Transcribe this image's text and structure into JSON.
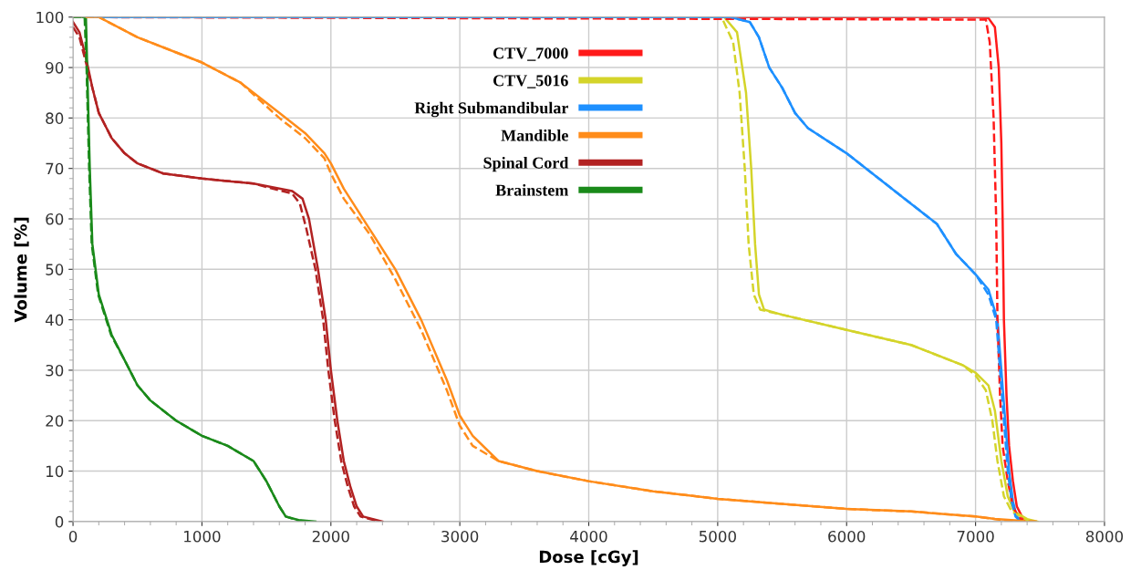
{
  "chart_data": {
    "type": "line",
    "xlabel": "Dose [cGy]",
    "ylabel": "Volume [%]",
    "xlim": [
      0,
      8000
    ],
    "ylim": [
      0,
      100
    ],
    "xticks": [
      0,
      1000,
      2000,
      3000,
      4000,
      5000,
      6000,
      7000,
      8000
    ],
    "yticks": [
      0,
      10,
      20,
      30,
      40,
      50,
      60,
      70,
      80,
      90,
      100
    ],
    "grid": true,
    "legend": "top",
    "marker": "none",
    "series": [
      {
        "name": "CTV_7000",
        "color": "#ff1a1a",
        "line_style": "solid",
        "x": [
          0,
          7000,
          7100,
          7150,
          7180,
          7200,
          7210,
          7220,
          7240,
          7260,
          7290,
          7320,
          7360,
          7400
        ],
        "values": [
          100,
          100,
          99.8,
          98,
          90,
          75,
          60,
          40,
          25,
          15,
          8,
          3,
          1,
          0
        ]
      },
      {
        "name": "CTV_5016",
        "color": "#d4d42a",
        "line_style": "solid",
        "x": [
          0,
          5050,
          5150,
          5220,
          5260,
          5290,
          5320,
          5360,
          5500,
          6000,
          6500,
          6900,
          7000,
          7100,
          7150,
          7200,
          7250,
          7300,
          7400,
          7480
        ],
        "values": [
          100,
          100,
          97,
          85,
          70,
          55,
          45,
          42,
          41,
          38,
          35,
          31,
          29.5,
          27,
          22,
          12,
          5,
          2,
          0.5,
          0
        ]
      },
      {
        "name": "Right Submandibular",
        "color": "#1e90ff",
        "line_style": "solid",
        "x": [
          0,
          5100,
          5250,
          5320,
          5400,
          5500,
          5600,
          5700,
          6000,
          6200,
          6500,
          6700,
          6850,
          7000,
          7100,
          7170,
          7200,
          7230,
          7260,
          7290,
          7320,
          7360
        ],
        "values": [
          100,
          100,
          99,
          96,
          90,
          86,
          81,
          78,
          73,
          69,
          63,
          59,
          53,
          49,
          46,
          40,
          30,
          20,
          10,
          4,
          1,
          0
        ]
      },
      {
        "name": "Mandible",
        "color": "#ff8c1a",
        "line_style": "solid",
        "x": [
          0,
          200,
          500,
          800,
          1000,
          1300,
          1600,
          1800,
          1950,
          2000,
          2100,
          2300,
          2500,
          2700,
          2900,
          3000,
          3100,
          3300,
          3600,
          4000,
          4500,
          5000,
          5500,
          6000,
          6500,
          7000,
          7150,
          7450
        ],
        "values": [
          100,
          100,
          96,
          93,
          91,
          87,
          81,
          77,
          73,
          71,
          66,
          58,
          50,
          40,
          28,
          21,
          17,
          12,
          10,
          8,
          6,
          4.5,
          3.5,
          2.5,
          2,
          1,
          0.5,
          0
        ]
      },
      {
        "name": "Spinal Cord",
        "color": "#b22222",
        "line_style": "solid",
        "x": [
          0,
          50,
          100,
          150,
          200,
          300,
          400,
          500,
          700,
          1000,
          1400,
          1700,
          1780,
          1830,
          1900,
          1960,
          2000,
          2050,
          2100,
          2150,
          2200,
          2250,
          2400
        ],
        "values": [
          99,
          97,
          92,
          86,
          81,
          76,
          73,
          71,
          69,
          68,
          67,
          65.5,
          64,
          60,
          50,
          40,
          30,
          20,
          12,
          7,
          3,
          1,
          0
        ]
      },
      {
        "name": "Brainstem",
        "color": "#1a8a1a",
        "line_style": "solid",
        "x": [
          0,
          100,
          110,
          130,
          150,
          200,
          300,
          400,
          500,
          600,
          800,
          1000,
          1200,
          1400,
          1500,
          1600,
          1650,
          1750,
          1880
        ],
        "values": [
          100,
          100,
          90,
          70,
          55,
          45,
          37,
          32,
          27,
          24,
          20,
          17,
          15,
          12,
          8,
          3,
          1,
          0.3,
          0
        ]
      },
      {
        "color": "#ff1a1a",
        "line_style": "dashed",
        "x": [
          0,
          7080,
          7110,
          7140,
          7160,
          7170,
          7190,
          7210,
          7250,
          7290,
          7330,
          7380
        ],
        "values": [
          100,
          99.5,
          95,
          80,
          60,
          40,
          25,
          15,
          8,
          3,
          1,
          0
        ]
      },
      {
        "color": "#d4d42a",
        "line_style": "dashed",
        "x": [
          0,
          5030,
          5120,
          5170,
          5210,
          5240,
          5280,
          5330,
          5500,
          6000,
          6500,
          6900,
          7000,
          7080,
          7130,
          7170,
          7220,
          7280,
          7400,
          7460
        ],
        "values": [
          100,
          100,
          95,
          85,
          70,
          55,
          45,
          42,
          41,
          38,
          35,
          31,
          29,
          26,
          20,
          12,
          5,
          2,
          0.3,
          0
        ]
      },
      {
        "color": "#1e90ff",
        "line_style": "dashed",
        "x": [
          0,
          5100,
          5250,
          5320,
          5400,
          5500,
          5600,
          5700,
          6000,
          6200,
          6500,
          6700,
          6850,
          7000,
          7100,
          7160,
          7190,
          7220,
          7250,
          7280,
          7310,
          7350
        ],
        "values": [
          100,
          100,
          99,
          96,
          90,
          86,
          81,
          78,
          73,
          69,
          63,
          59,
          53,
          49,
          45,
          40,
          30,
          20,
          10,
          4,
          1,
          0
        ]
      },
      {
        "color": "#ff8c1a",
        "line_style": "dashed",
        "x": [
          0,
          200,
          500,
          800,
          1000,
          1300,
          1600,
          1800,
          1950,
          2000,
          2100,
          2300,
          2500,
          2700,
          2900,
          3000,
          3100,
          3300,
          3600,
          4000,
          4500,
          5000,
          5500,
          6000,
          6500,
          7000,
          7200,
          7480
        ],
        "values": [
          100,
          100,
          96,
          93,
          91,
          87,
          80,
          76,
          72,
          69,
          64,
          57,
          48,
          38,
          26,
          19,
          15,
          12,
          10,
          8,
          6,
          4.5,
          3.5,
          2.5,
          2,
          1,
          0.3,
          0
        ]
      },
      {
        "color": "#b22222",
        "line_style": "dashed",
        "x": [
          0,
          50,
          100,
          150,
          200,
          300,
          400,
          500,
          700,
          1000,
          1400,
          1700,
          1760,
          1810,
          1880,
          1940,
          1980,
          2030,
          2080,
          2130,
          2180,
          2230,
          2380
        ],
        "values": [
          98,
          96,
          91,
          86,
          81,
          76,
          73,
          71,
          69,
          68,
          67,
          65,
          63,
          58,
          50,
          40,
          30,
          20,
          12,
          7,
          3,
          1,
          0
        ]
      },
      {
        "color": "#1a8a1a",
        "line_style": "dashed",
        "x": [
          0,
          90,
          105,
          125,
          145,
          195,
          295,
          400,
          500,
          600,
          800,
          1000,
          1200,
          1400,
          1500,
          1600,
          1650,
          1750,
          1800
        ],
        "values": [
          100,
          100,
          90,
          70,
          55,
          45,
          37,
          32,
          27,
          24,
          20,
          17,
          15,
          12,
          8,
          3,
          1,
          0.2,
          0
        ]
      }
    ]
  }
}
